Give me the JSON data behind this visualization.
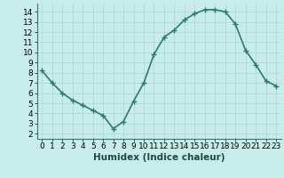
{
  "x": [
    0,
    1,
    2,
    3,
    4,
    5,
    6,
    7,
    8,
    9,
    10,
    11,
    12,
    13,
    14,
    15,
    16,
    17,
    18,
    19,
    20,
    21,
    22,
    23
  ],
  "y": [
    8.2,
    7.0,
    6.0,
    5.3,
    4.8,
    4.3,
    3.8,
    2.5,
    3.2,
    5.2,
    7.0,
    9.8,
    11.5,
    12.2,
    13.2,
    13.8,
    14.2,
    14.2,
    14.0,
    12.8,
    10.2,
    8.8,
    7.2,
    6.7
  ],
  "line_color": "#2a7d6e",
  "marker": "+",
  "bg_color": "#c8ecea",
  "grid_color": "#b0d8d4",
  "xlabel": "Humidex (Indice chaleur)",
  "xlim": [
    -0.5,
    23.5
  ],
  "ylim": [
    1.5,
    14.8
  ],
  "xticks": [
    0,
    1,
    2,
    3,
    4,
    5,
    6,
    7,
    8,
    9,
    10,
    11,
    12,
    13,
    14,
    15,
    16,
    17,
    18,
    19,
    20,
    21,
    22,
    23
  ],
  "yticks": [
    2,
    3,
    4,
    5,
    6,
    7,
    8,
    9,
    10,
    11,
    12,
    13,
    14
  ],
  "xlabel_fontsize": 7.5,
  "tick_fontsize": 6.5,
  "line_width": 1.2,
  "marker_size": 4,
  "marker_ew": 1.0
}
